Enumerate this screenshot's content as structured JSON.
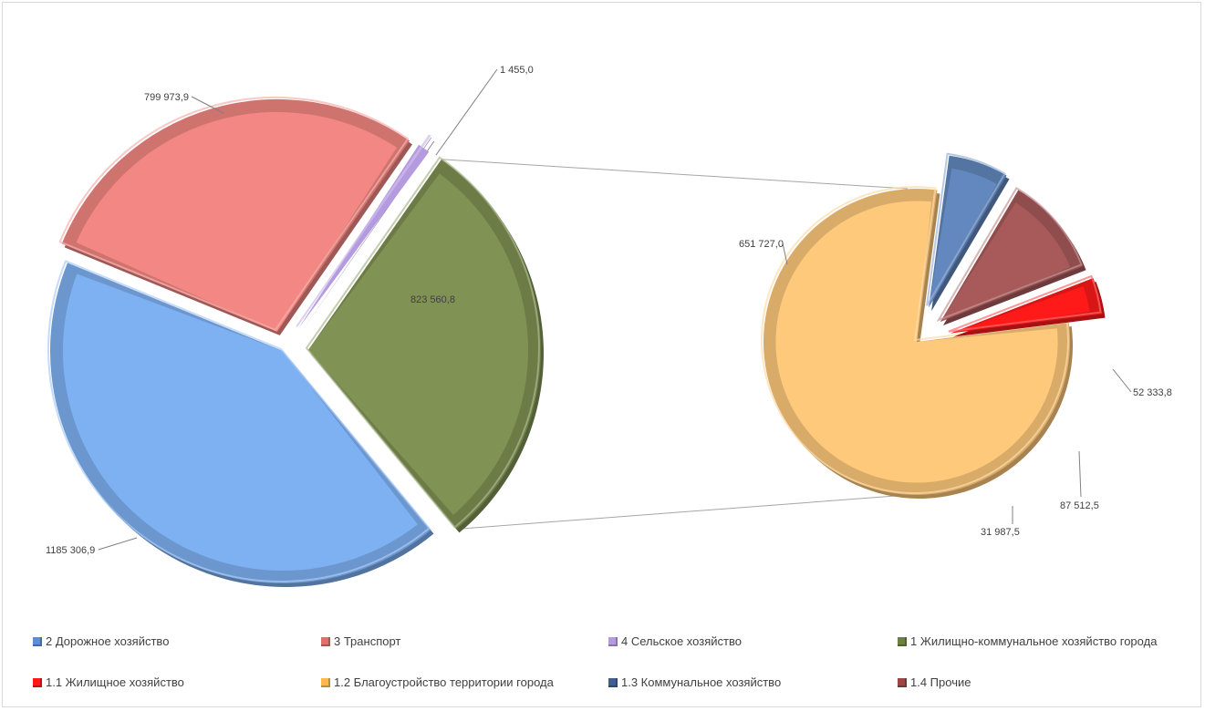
{
  "chart_data": {
    "type": "pie",
    "subtype": "pie-of-pie",
    "primary": {
      "slices": [
        {
          "name": "2 Дорожное хозяйство",
          "value": 1185306.9,
          "label": "1185 306,9",
          "color": "#7EB1F2"
        },
        {
          "name": "3 Транспорт",
          "value": 799973.9,
          "label": "799 973,9",
          "color": "#F38783"
        },
        {
          "name": "4 Сельское хозяйство",
          "value": 1455.0,
          "label": "1 455,0",
          "color": "#B49BE0"
        },
        {
          "name": "1 Жилищно-коммунальное  хозяйство города",
          "value": 823560.8,
          "label": "823 560,8",
          "color": "#809254"
        }
      ]
    },
    "secondary": {
      "slices": [
        {
          "name": "1.2 Благоустройство территории города",
          "value": 651727.0,
          "label": "651 727,0",
          "color": "#FFC97B"
        },
        {
          "name": "1.3 Коммунальное хозяйство",
          "value": 52333.8,
          "label": "52 333,8",
          "color": "#6388BF"
        },
        {
          "name": "1.4 Прочие",
          "value": 87512.5,
          "label": "87 512,5",
          "color": "#A85A5A"
        },
        {
          "name": "1.1 Жилищное хозяйство",
          "value": 31987.5,
          "label": "31 987,5",
          "color": "#FF1A1A"
        }
      ]
    },
    "legend_position": "bottom",
    "legend": [
      {
        "label": "2 Дорожное хозяйство",
        "color": "#5B8ED6"
      },
      {
        "label": "3 Транспорт",
        "color": "#E0706C"
      },
      {
        "label": "4 Сельское хозяйство",
        "color": "#B49BE0"
      },
      {
        "label": "1 Жилищно-коммунальное  хозяйство города",
        "color": "#6C8040"
      },
      {
        "label": "1.1 Жилищное хозяйство",
        "color": "#FF1A1A"
      },
      {
        "label": "1.2 Благоустройство территории города",
        "color": "#FFB84D"
      },
      {
        "label": "1.3 Коммунальное хозяйство",
        "color": "#3F5F8F"
      },
      {
        "label": "1.4 Прочие",
        "color": "#A04545"
      }
    ]
  }
}
